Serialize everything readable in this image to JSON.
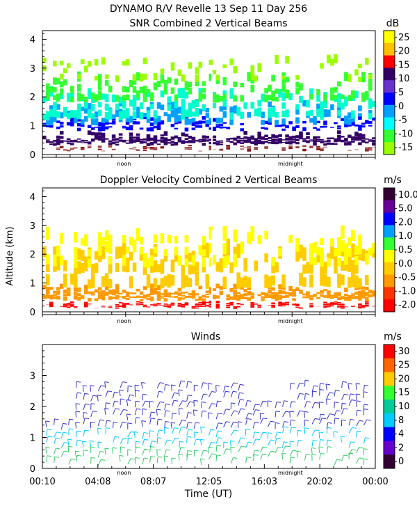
{
  "header": {
    "title_line1": "DYNAMO R/V Revelle  13 Sep 11 Day 256",
    "title_line2": "SNR Combined 2 Vertical Beams"
  },
  "chart_data": [
    {
      "type": "heatmap",
      "title": "SNR Combined 2 Vertical Beams",
      "ylabel": "",
      "ylim": [
        0,
        4.3
      ],
      "yticks": [
        "0",
        "1",
        "2",
        "3",
        "4"
      ],
      "xtick_labels": [
        "noon",
        "midnight"
      ],
      "colorbar": {
        "unit": "dB",
        "labels": [
          "25",
          "20",
          "15",
          "10",
          "5",
          "0",
          "-5",
          "-10",
          "-15"
        ],
        "colors": [
          "#ffff00",
          "#ffc000",
          "#ff0000",
          "#330066",
          "#6633cc",
          "#0000ff",
          "#00a0ff",
          "#00ffff",
          "#33ff33",
          "#99ff00"
        ]
      },
      "layers": [
        {
          "from": 0.1,
          "to": 0.35,
          "color": "#8b1a1a",
          "coverage": 0.9
        },
        {
          "from": 0.3,
          "to": 0.85,
          "color": "#330066",
          "coverage": 0.85
        },
        {
          "from": 0.8,
          "to": 1.4,
          "color": "#0000ff",
          "coverage": 0.5
        },
        {
          "from": 1.0,
          "to": 2.0,
          "color": "#00a0ff",
          "coverage": 0.45
        },
        {
          "from": 1.2,
          "to": 2.4,
          "color": "#00ffcc",
          "coverage": 0.45
        },
        {
          "from": 1.8,
          "to": 2.9,
          "color": "#33ff33",
          "coverage": 0.4
        },
        {
          "from": 2.5,
          "to": 3.5,
          "color": "#99ff00",
          "coverage": 0.2
        }
      ]
    },
    {
      "type": "heatmap",
      "title": "Doppler Velocity Combined 2 Vertical Beams",
      "ylabel": "Altitude (km)",
      "ylim": [
        0,
        4.3
      ],
      "yticks": [
        "0",
        "1",
        "2",
        "3",
        "4"
      ],
      "xtick_labels": [
        "noon",
        "midnight"
      ],
      "colorbar": {
        "unit": "m/s",
        "labels": [
          "10.0",
          "5.0",
          "2.0",
          "1.0",
          "0.5",
          "0.0",
          "-0.5",
          "-1.0",
          "-2.0"
        ],
        "colors": [
          "#330033",
          "#660099",
          "#0000ff",
          "#00a0ff",
          "#33ff33",
          "#ffff00",
          "#ffcc00",
          "#ff9900",
          "#ff3300",
          "#ff0000"
        ]
      },
      "layers": [
        {
          "from": 0.1,
          "to": 0.4,
          "color": "#ff0000",
          "coverage": 0.95
        },
        {
          "from": 0.35,
          "to": 1.0,
          "color": "#ff9900",
          "coverage": 0.7
        },
        {
          "from": 0.8,
          "to": 2.5,
          "color": "#ffcc00",
          "coverage": 0.55
        },
        {
          "from": 1.5,
          "to": 3.0,
          "color": "#ffff00",
          "coverage": 0.35
        }
      ]
    },
    {
      "type": "barbs",
      "title": "Winds",
      "ylim": [
        0,
        4
      ],
      "yticks": [
        "0",
        "1",
        "2",
        "3"
      ],
      "xlabel": "Time (UT)",
      "xtick_labels": [
        "00:10",
        "04:08",
        "08:07",
        "12:05",
        "16:03",
        "20:02",
        "00:00"
      ],
      "inner_labels": [
        "noon",
        "midnight"
      ],
      "colorbar": {
        "unit": "m/s",
        "labels": [
          "30",
          "25",
          "20",
          "15",
          "10",
          "8",
          "4",
          "2",
          "0"
        ],
        "colors": [
          "#ff0000",
          "#ff6600",
          "#ffcc00",
          "#33ff33",
          "#00cc99",
          "#00ccff",
          "#0000ff",
          "#6600cc",
          "#330033"
        ]
      },
      "wind_rows": [
        {
          "alt": 0.2,
          "color": "#33cc66"
        },
        {
          "alt": 0.45,
          "color": "#33cc66"
        },
        {
          "alt": 0.75,
          "color": "#00ccff"
        },
        {
          "alt": 1.05,
          "color": "#00ccff"
        },
        {
          "alt": 1.35,
          "color": "#3333cc"
        },
        {
          "alt": 1.65,
          "color": "#3333cc"
        },
        {
          "alt": 1.95,
          "color": "#3333cc"
        },
        {
          "alt": 2.25,
          "color": "#3333cc"
        },
        {
          "alt": 2.55,
          "color": "#3333cc"
        }
      ]
    }
  ]
}
